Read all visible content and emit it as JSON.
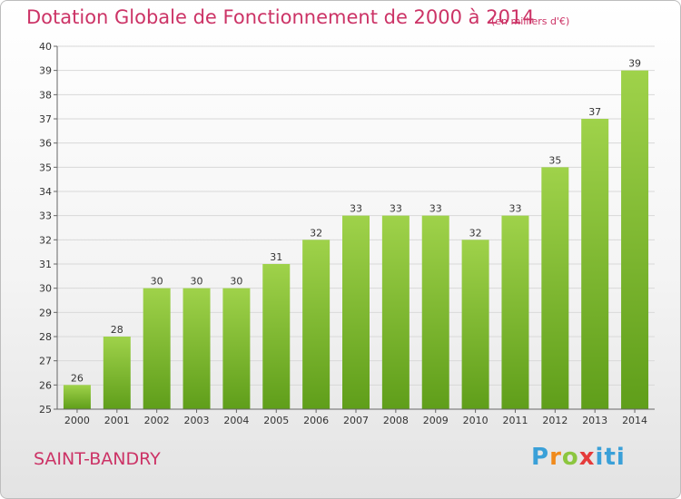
{
  "header": {
    "title": "Dotation Globale de Fonctionnement de 2000 à 2014",
    "unit": "(en milliers d'€)"
  },
  "footer": {
    "commune": "SAINT-BANDRY",
    "logo": "Proxiti"
  },
  "colors": {
    "accent": "#cc3366",
    "bar_light": "#9fd24a",
    "bar_dark": "#5f9e1a"
  },
  "chart_data": {
    "type": "bar",
    "title": "Dotation Globale de Fonctionnement de 2000 à 2014",
    "subtitle": "(en milliers d'€)",
    "xlabel": "",
    "ylabel": "",
    "categories": [
      "2000",
      "2001",
      "2002",
      "2003",
      "2004",
      "2005",
      "2006",
      "2007",
      "2008",
      "2009",
      "2010",
      "2011",
      "2012",
      "2013",
      "2014"
    ],
    "values": [
      26,
      28,
      30,
      30,
      30,
      31,
      32,
      33,
      33,
      33,
      32,
      33,
      35,
      37,
      39
    ],
    "ylim": [
      25,
      40
    ],
    "yticks": [
      25,
      26,
      27,
      28,
      29,
      30,
      31,
      32,
      33,
      34,
      35,
      36,
      37,
      38,
      39,
      40
    ],
    "grid": true,
    "data_labels": true
  }
}
